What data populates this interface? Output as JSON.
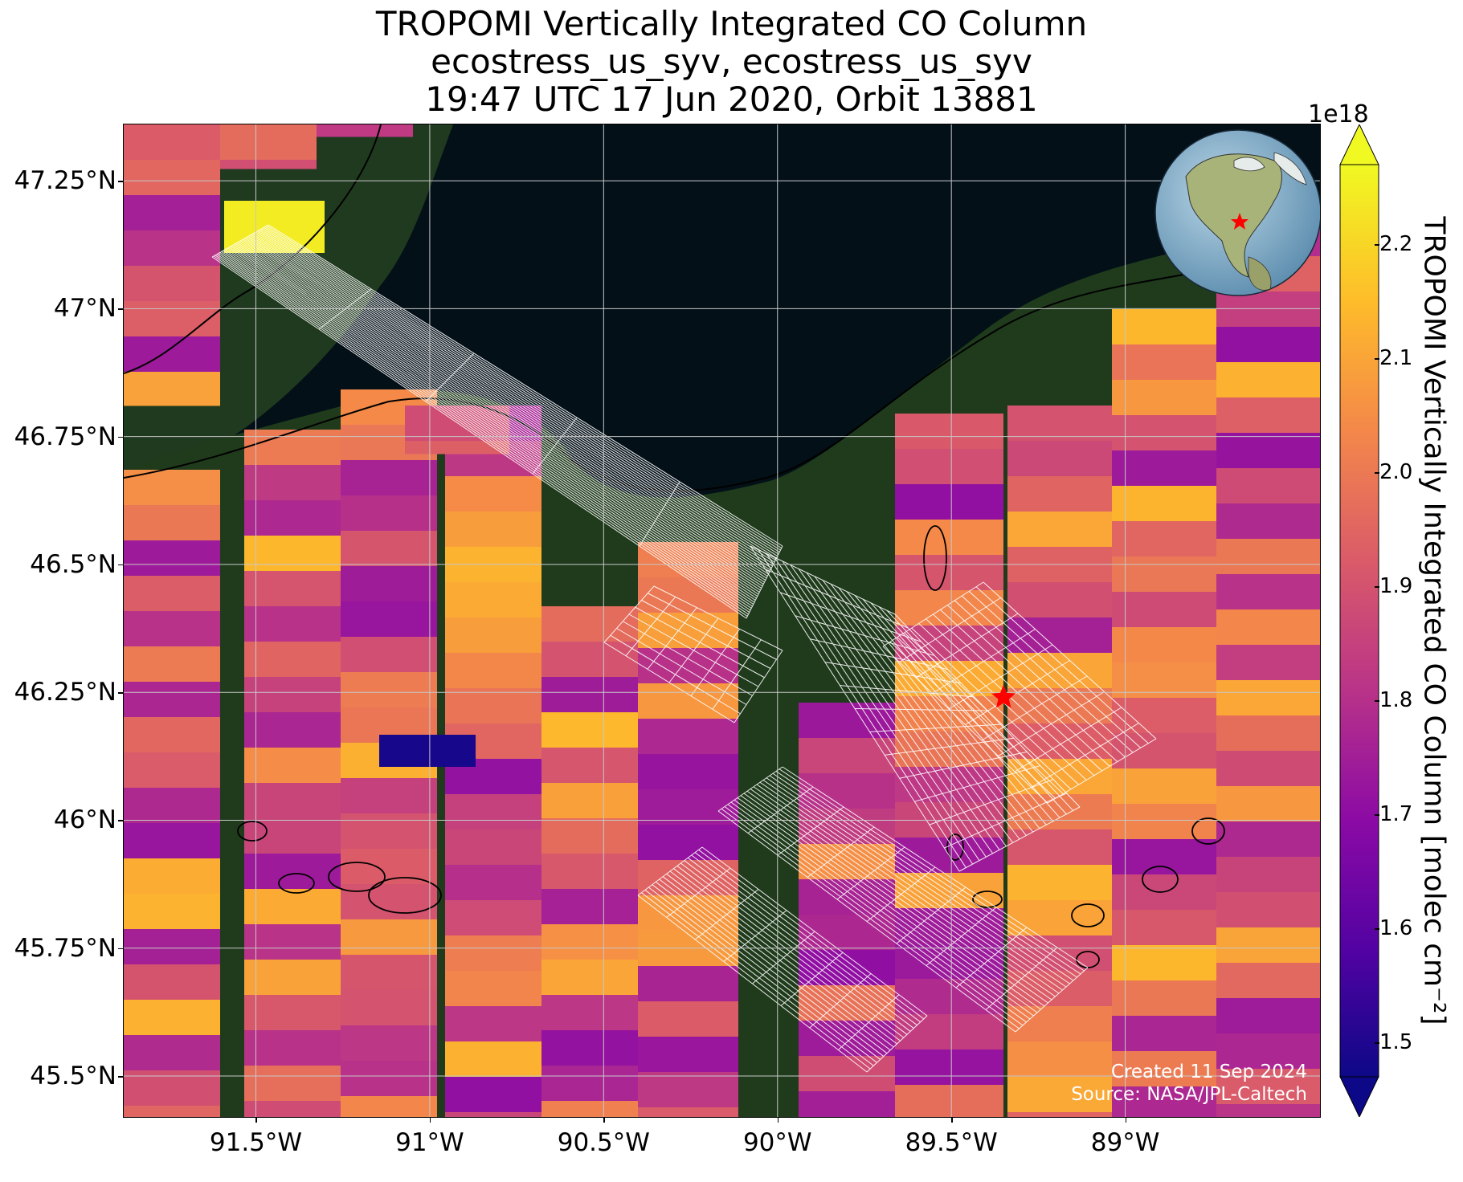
{
  "title": {
    "line1": "TROPOMI Vertically Integrated CO Column",
    "line2": "ecostress_us_syv, ecostress_us_syv",
    "line3": "19:47 UTC 17 Jun 2020, Orbit 13881"
  },
  "map": {
    "lon_range": [
      -91.88,
      -88.44
    ],
    "lat_range": [
      45.42,
      47.36
    ],
    "y_ticks": [
      {
        "label": "47.25°N",
        "lat": 47.25
      },
      {
        "label": "47°N",
        "lat": 47.0
      },
      {
        "label": "46.75°N",
        "lat": 46.75
      },
      {
        "label": "46.5°N",
        "lat": 46.5
      },
      {
        "label": "46.25°N",
        "lat": 46.25
      },
      {
        "label": "46°N",
        "lat": 46.0
      },
      {
        "label": "45.75°N",
        "lat": 45.75
      },
      {
        "label": "45.5°N",
        "lat": 45.5
      }
    ],
    "x_ticks": [
      {
        "label": "91.5°W",
        "lon": -91.5
      },
      {
        "label": "91°W",
        "lon": -91.0
      },
      {
        "label": "90.5°W",
        "lon": -90.5
      },
      {
        "label": "90°W",
        "lon": -90.0
      },
      {
        "label": "89.5°W",
        "lon": -89.5
      },
      {
        "label": "89°W",
        "lon": -89.0
      }
    ],
    "site_marker": {
      "lon": -89.35,
      "lat": 46.24,
      "color": "#ff0000",
      "icon": "red-star-icon"
    },
    "grid": true
  },
  "colorbar": {
    "label": "TROPOMI Vertically Integrated CO Column [molec cm$^{-2}$]",
    "label_display": "TROPOMI Vertically Integrated CO Column [molec cm⁻²]",
    "exponent": "1e18",
    "colormap": "plasma",
    "range": [
      1.47,
      2.27
    ],
    "extend": "both",
    "ticks": [
      "1.5",
      "1.6",
      "1.7",
      "1.8",
      "1.9",
      "2.0",
      "2.1",
      "2.2"
    ]
  },
  "footer": {
    "created": "Created 11 Sep 2024",
    "source": "Source: NASA/JPL-Caltech"
  },
  "inset_globe": {
    "icon": "globe-icon",
    "marker_color": "#ff0000"
  },
  "colors": {
    "lake": "#031018",
    "land": "#1f3a1c",
    "grid": "#c8c8c8",
    "footprint": "#ffffff"
  }
}
